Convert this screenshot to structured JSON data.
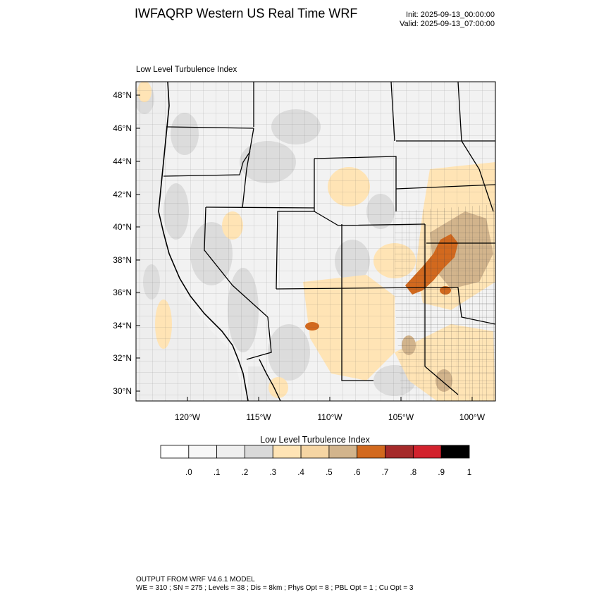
{
  "header": {
    "title": "IWFAQRP Western US Real Time WRF",
    "init": "Init: 2025-09-13_00:00:00",
    "valid": "Valid: 2025-09-13_07:00:00"
  },
  "plot": {
    "title": "Low Level Turbulence Index",
    "lat_labels": [
      "48°N",
      "46°N",
      "44°N",
      "42°N",
      "40°N",
      "38°N",
      "36°N",
      "34°N",
      "32°N",
      "30°N"
    ],
    "lon_labels": [
      "120°W",
      "115°W",
      "110°W",
      "105°W",
      "100°W"
    ]
  },
  "colorbar": {
    "title": "Low Level Turbulence Index",
    "colors": [
      "#ffffff",
      "#f7f7f7",
      "#efefef",
      "#d9d9d9",
      "#ffe4b5",
      "#f5d5a3",
      "#d2b48c",
      "#d2691e",
      "#a52a2a",
      "#d2222d",
      "#000000"
    ],
    "labels": [
      ".0",
      ".1",
      ".2",
      ".3",
      ".4",
      ".5",
      ".6",
      ".7",
      ".8",
      ".9",
      "1"
    ]
  },
  "footer": {
    "line1": "OUTPUT FROM WRF V4.6.1 MODEL",
    "line2": "WE = 310 ; SN = 275 ; Levels = 38 ; Dis = 8km ; Phys Opt = 8 ; PBL Opt = 1 ; Cu Opt = 3"
  }
}
